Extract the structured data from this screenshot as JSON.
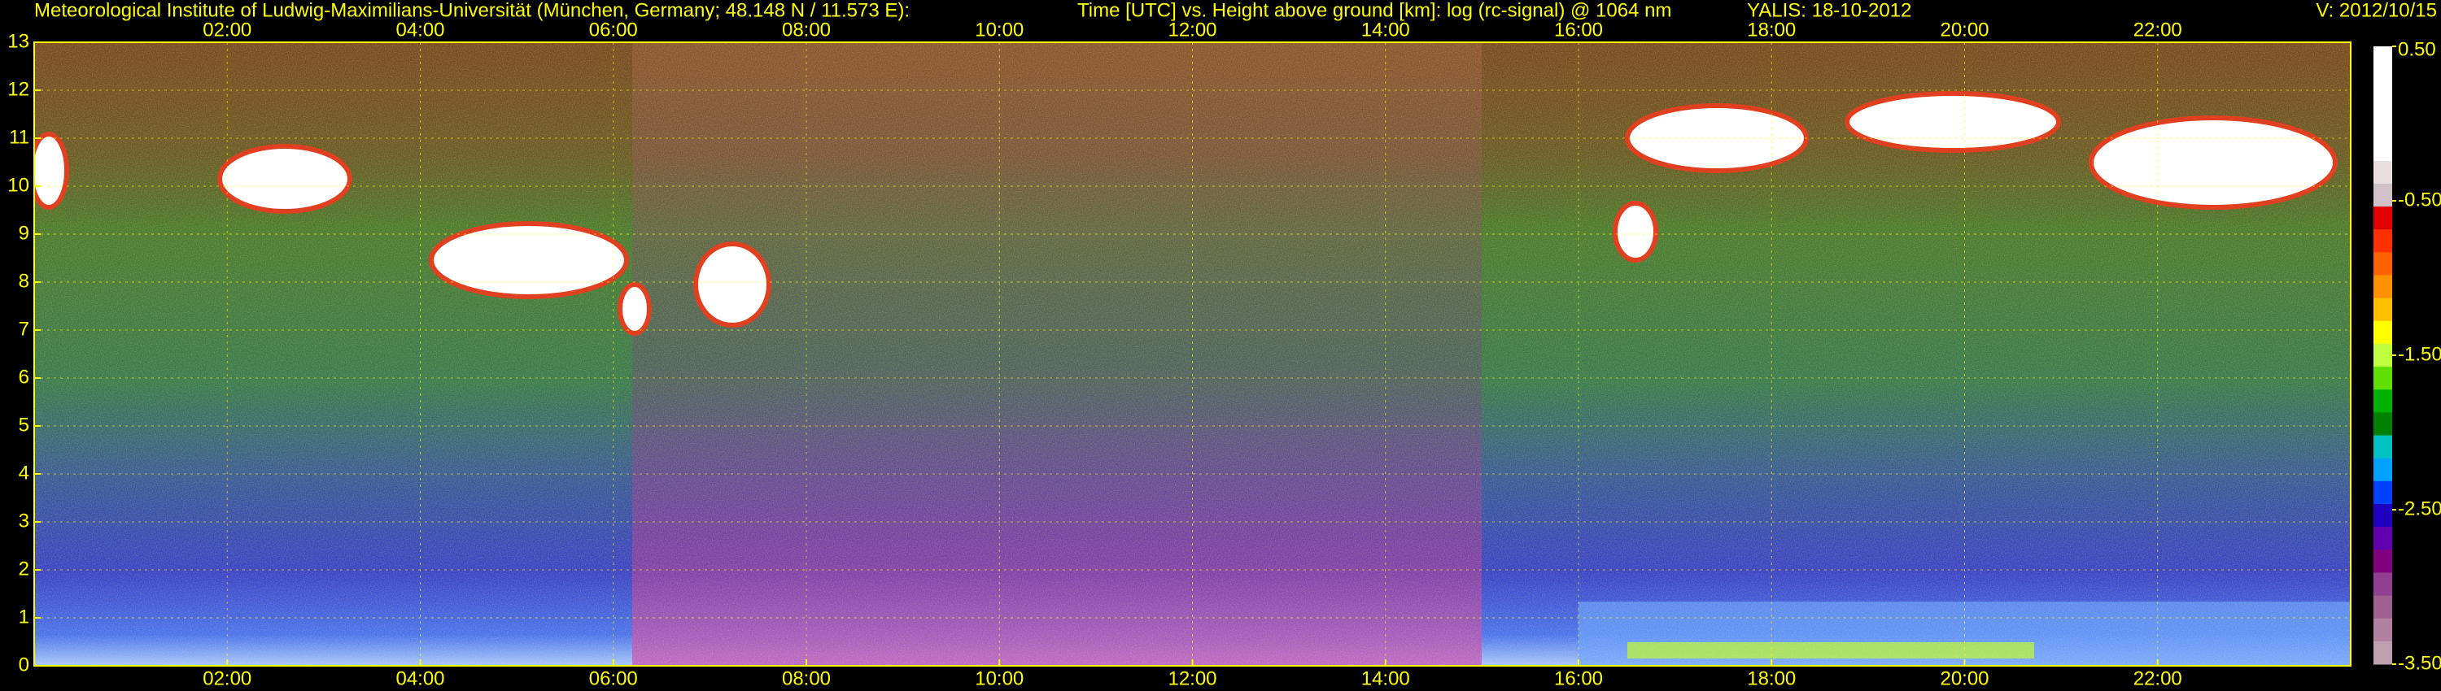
{
  "chart_data": {
    "type": "heatmap",
    "title": "Meteorological Institute of Ludwig-Maximilians-Universität (München, Germany; 48.148 N / 11.573 E):",
    "subtitle": "Time [UTC] vs. Height above ground [km]: log (rc-signal) @ 1064 nm",
    "station": "YALIS: 18-10-2012",
    "version": "V: 2012/10/15",
    "xlim": [
      0,
      24
    ],
    "xticks": [
      {
        "value": 2,
        "label": "02:00"
      },
      {
        "value": 4,
        "label": "04:00"
      },
      {
        "value": 6,
        "label": "06:00"
      },
      {
        "value": 8,
        "label": "08:00"
      },
      {
        "value": 10,
        "label": "10:00"
      },
      {
        "value": 12,
        "label": "12:00"
      },
      {
        "value": 14,
        "label": "14:00"
      },
      {
        "value": 16,
        "label": "16:00"
      },
      {
        "value": 18,
        "label": "18:00"
      },
      {
        "value": 20,
        "label": "20:00"
      },
      {
        "value": 22,
        "label": "22:00"
      }
    ],
    "ylim": [
      0,
      13
    ],
    "yticks": [
      0,
      1,
      2,
      3,
      4,
      5,
      6,
      7,
      8,
      9,
      10,
      11,
      12,
      13
    ],
    "clim": [
      -3.5,
      0.5
    ],
    "cticks": [
      {
        "value": 0.5,
        "label": "0.50"
      },
      {
        "value": -0.5,
        "label": "-0.50"
      },
      {
        "value": -1.5,
        "label": "-1.50"
      },
      {
        "value": -2.5,
        "label": "-2.50"
      },
      {
        "value": -3.5,
        "label": "-3.50"
      }
    ],
    "colormap": [
      "#ffffff",
      "#ffffff",
      "#ffffff",
      "#ffffff",
      "#ffffff",
      "#e8e0e0",
      "#d0c0c8",
      "#e00000",
      "#ff3000",
      "#ff6000",
      "#ff9000",
      "#ffc000",
      "#ffff00",
      "#c0ff40",
      "#60e000",
      "#00b000",
      "#008000",
      "#00c0c0",
      "#00a0ff",
      "#0040ff",
      "#2000c0",
      "#6000b0",
      "#800080",
      "#904090",
      "#a06090",
      "#b080a0",
      "#c0a0b0"
    ],
    "grid": true,
    "text_color": "#ffff00"
  }
}
